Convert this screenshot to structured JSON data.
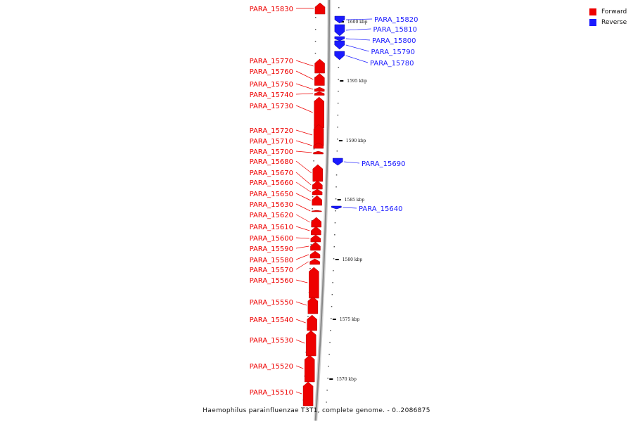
{
  "caption": "Haemophilus parainfluenzae T3T1, complete genome. - 0..2086875",
  "legend": [
    {
      "label": "Forward",
      "color": "#ee0000"
    },
    {
      "label": "Reverse",
      "color": "#1a1aff"
    }
  ],
  "colors": {
    "forward": "#ee0000",
    "reverse": "#1a1aff",
    "backbone": "#888888"
  },
  "ticks": [
    {
      "kbp": 1600,
      "label": "1600 kbp"
    },
    {
      "kbp": 1595,
      "label": "1595 kbp"
    },
    {
      "kbp": 1590,
      "label": "1590 kbp"
    },
    {
      "kbp": 1585,
      "label": "1585 kbp"
    },
    {
      "kbp": 1580,
      "label": "1580 kbp"
    },
    {
      "kbp": 1575,
      "label": "1575 kbp"
    },
    {
      "kbp": 1570,
      "label": "1570 kbp"
    }
  ],
  "genes": {
    "forward": [
      "PARA_15830",
      "PARA_15770",
      "PARA_15760",
      "PARA_15750",
      "PARA_15740",
      "PARA_15730",
      "PARA_15720",
      "PARA_15710",
      "PARA_15700",
      "PARA_15680",
      "PARA_15670",
      "PARA_15660",
      "PARA_15650",
      "PARA_15630",
      "PARA_15620",
      "PARA_15610",
      "PARA_15600",
      "PARA_15590",
      "PARA_15580",
      "PARA_15570",
      "PARA_15560",
      "PARA_15550",
      "PARA_15540",
      "PARA_15530",
      "PARA_15520",
      "PARA_15510"
    ],
    "reverse": [
      "PARA_15820",
      "PARA_15810",
      "PARA_15800",
      "PARA_15790",
      "PARA_15780",
      "PARA_15690",
      "PARA_15640"
    ]
  }
}
